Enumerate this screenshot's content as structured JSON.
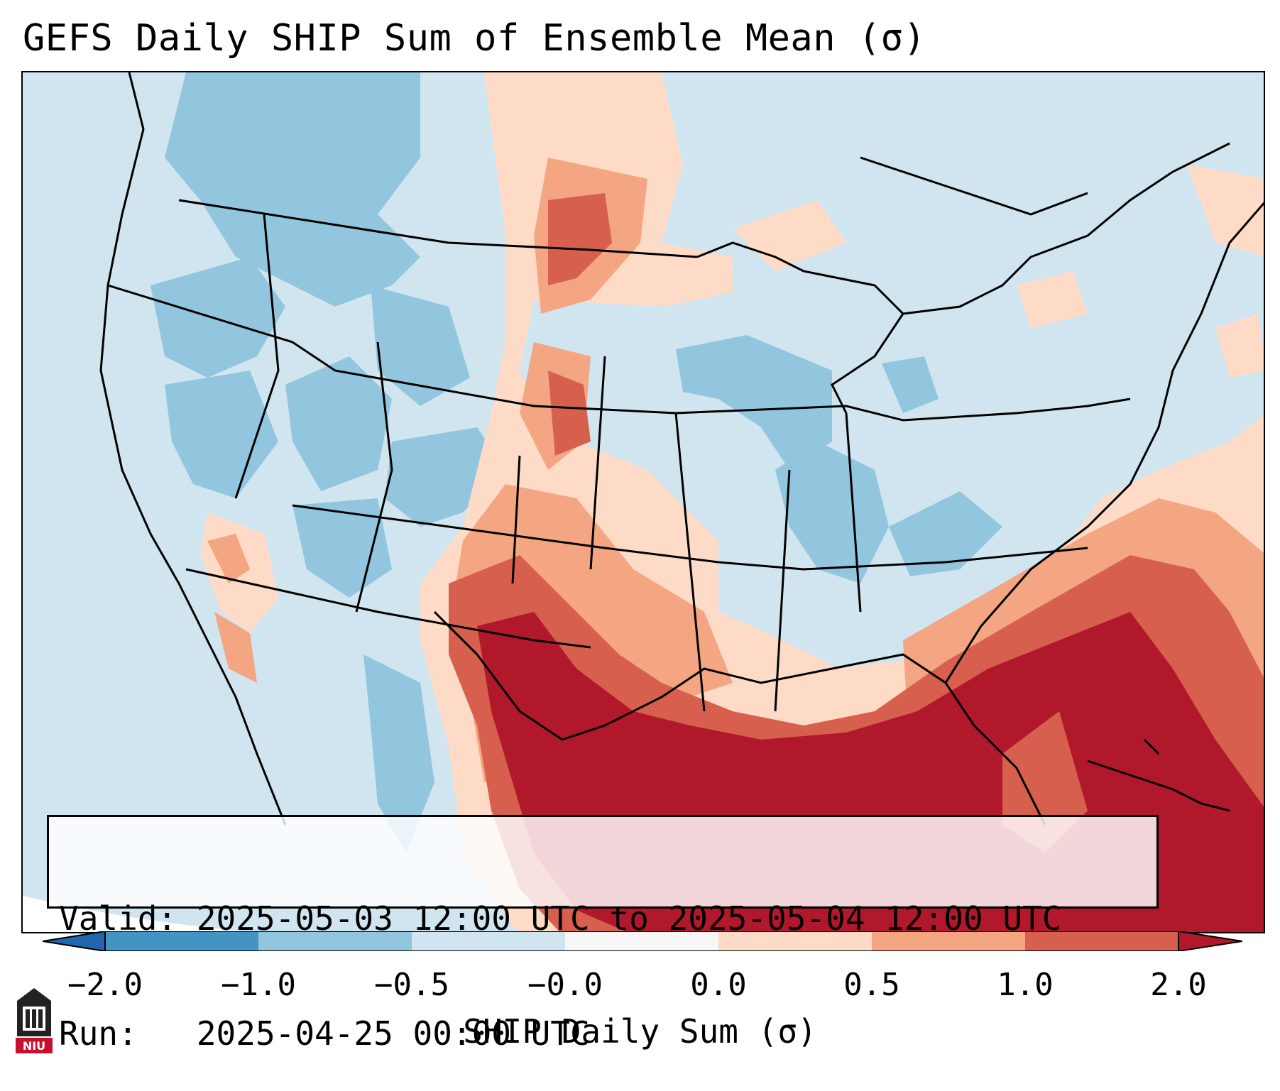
{
  "title": "GEFS Daily SHIP Sum of Ensemble Mean (σ)",
  "info": {
    "valid_line": "Valid: 2025-05-03 12:00 UTC to 2025-05-04 12:00 UTC",
    "run_line": "Run:   2025-04-25 00:00 UTC"
  },
  "colorbar": {
    "label": "SHIP Daily Sum (σ)",
    "ticks": [
      "−2.0",
      "−1.0",
      "−0.5",
      "−0.0",
      "0.0",
      "0.5",
      "1.0",
      "2.0"
    ],
    "colors": [
      "#4393c3",
      "#92c5de",
      "#d1e5f0",
      "#f7f7f7",
      "#fddbc7",
      "#f4a582",
      "#d6604d",
      "#b2182b"
    ],
    "under_color": "#2166ac",
    "over_color": "#b2182b"
  },
  "logo": {
    "text": "NIU",
    "color": "#c8102e"
  },
  "map": {
    "region": "Contiguous United States",
    "background_color": "#d1e5f0"
  }
}
